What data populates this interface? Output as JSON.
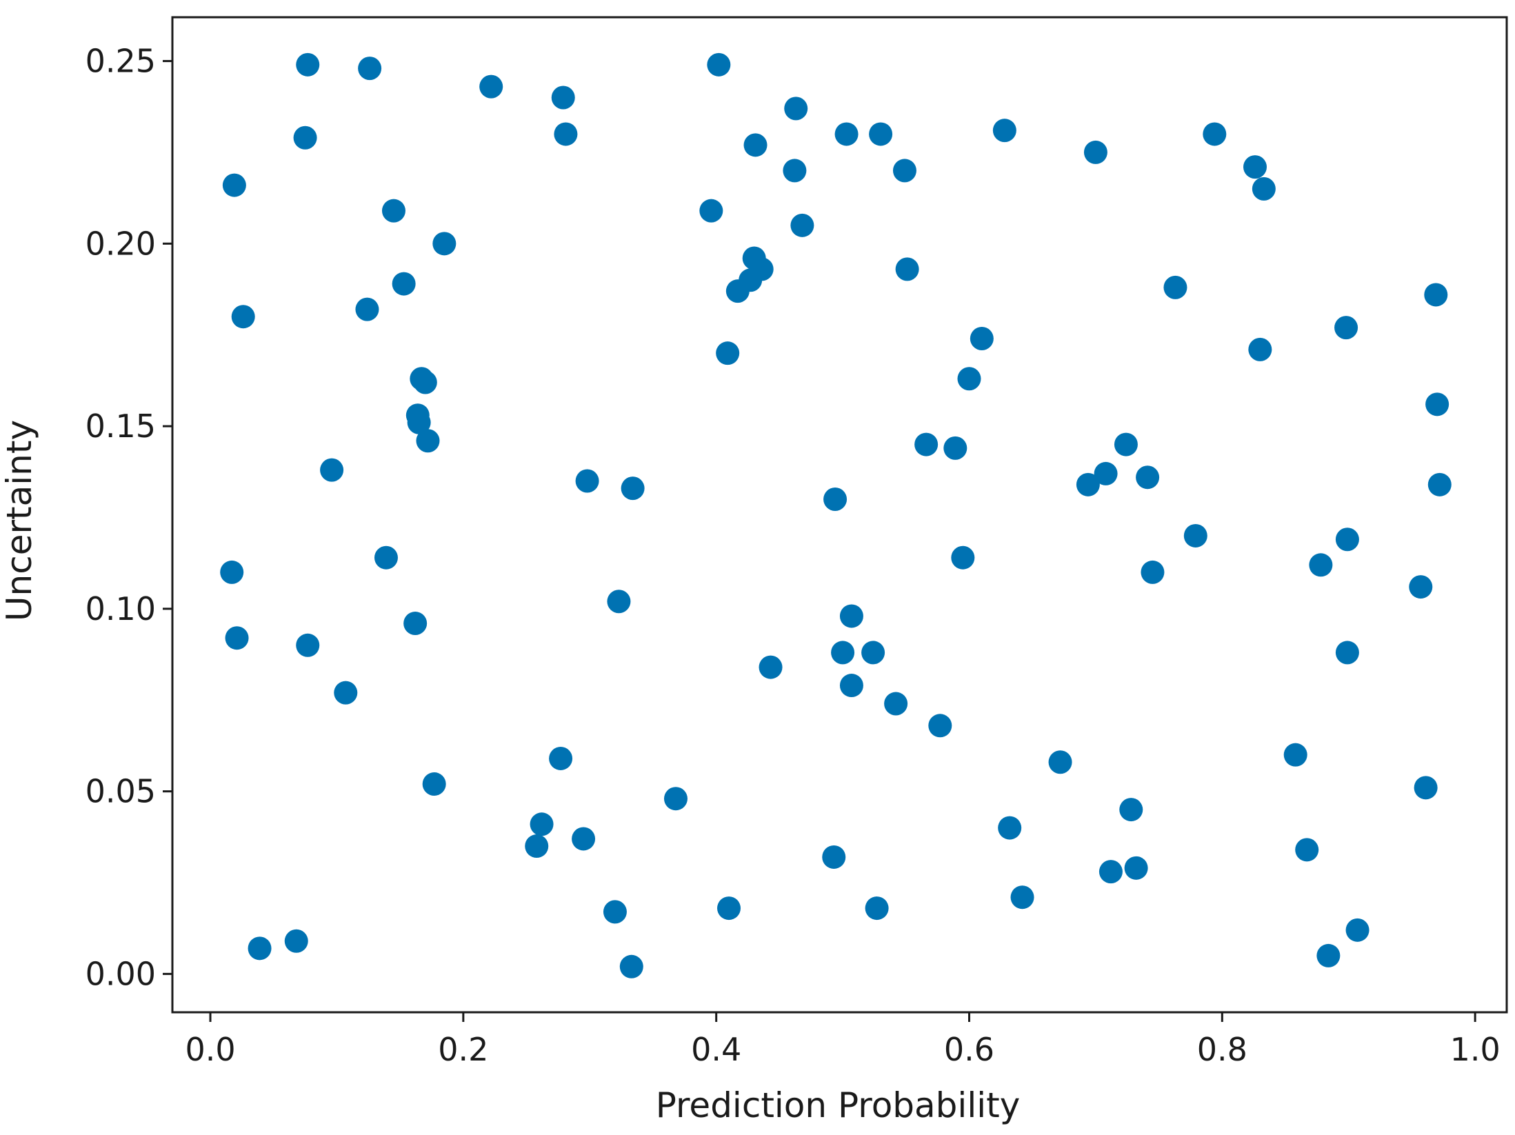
{
  "chart_data": {
    "type": "scatter",
    "title": "",
    "xlabel": "Prediction Probability",
    "ylabel": "Uncertainty",
    "xlim": [
      -0.03,
      1.025
    ],
    "ylim": [
      -0.0105,
      0.262
    ],
    "xticks": [
      0.0,
      0.2,
      0.4,
      0.6,
      0.8,
      1.0
    ],
    "xtick_labels": [
      "0.0",
      "0.2",
      "0.4",
      "0.6",
      "0.8",
      "1.0"
    ],
    "yticks": [
      0.0,
      0.05,
      0.1,
      0.15,
      0.2,
      0.25
    ],
    "ytick_labels": [
      "0.00",
      "0.05",
      "0.10",
      "0.15",
      "0.20",
      "0.25"
    ],
    "grid": false,
    "marker_color": "#0072b2",
    "series": [
      {
        "points": [
          [
            0.077,
            0.249
          ],
          [
            0.126,
            0.248
          ],
          [
            0.222,
            0.243
          ],
          [
            0.279,
            0.24
          ],
          [
            0.402,
            0.249
          ],
          [
            0.075,
            0.229
          ],
          [
            0.281,
            0.23
          ],
          [
            0.463,
            0.237
          ],
          [
            0.503,
            0.23
          ],
          [
            0.53,
            0.23
          ],
          [
            0.628,
            0.231
          ],
          [
            0.794,
            0.23
          ],
          [
            0.431,
            0.227
          ],
          [
            0.462,
            0.22
          ],
          [
            0.549,
            0.22
          ],
          [
            0.7,
            0.225
          ],
          [
            0.826,
            0.221
          ],
          [
            0.833,
            0.215
          ],
          [
            0.019,
            0.216
          ],
          [
            0.145,
            0.209
          ],
          [
            0.396,
            0.209
          ],
          [
            0.468,
            0.205
          ],
          [
            0.185,
            0.2
          ],
          [
            0.43,
            0.196
          ],
          [
            0.436,
            0.193
          ],
          [
            0.427,
            0.19
          ],
          [
            0.417,
            0.187
          ],
          [
            0.551,
            0.193
          ],
          [
            0.153,
            0.189
          ],
          [
            0.763,
            0.188
          ],
          [
            0.969,
            0.186
          ],
          [
            0.026,
            0.18
          ],
          [
            0.124,
            0.182
          ],
          [
            0.898,
            0.177
          ],
          [
            0.409,
            0.17
          ],
          [
            0.61,
            0.174
          ],
          [
            0.83,
            0.171
          ],
          [
            0.167,
            0.163
          ],
          [
            0.17,
            0.162
          ],
          [
            0.6,
            0.163
          ],
          [
            0.164,
            0.153
          ],
          [
            0.165,
            0.151
          ],
          [
            0.172,
            0.146
          ],
          [
            0.97,
            0.156
          ],
          [
            0.566,
            0.145
          ],
          [
            0.589,
            0.144
          ],
          [
            0.724,
            0.145
          ],
          [
            0.096,
            0.138
          ],
          [
            0.298,
            0.135
          ],
          [
            0.334,
            0.133
          ],
          [
            0.694,
            0.134
          ],
          [
            0.708,
            0.137
          ],
          [
            0.741,
            0.136
          ],
          [
            0.972,
            0.134
          ],
          [
            0.494,
            0.13
          ],
          [
            0.779,
            0.12
          ],
          [
            0.899,
            0.119
          ],
          [
            0.139,
            0.114
          ],
          [
            0.595,
            0.114
          ],
          [
            0.878,
            0.112
          ],
          [
            0.017,
            0.11
          ],
          [
            0.745,
            0.11
          ],
          [
            0.957,
            0.106
          ],
          [
            0.323,
            0.102
          ],
          [
            0.507,
            0.098
          ],
          [
            0.162,
            0.096
          ],
          [
            0.021,
            0.092
          ],
          [
            0.077,
            0.09
          ],
          [
            0.5,
            0.088
          ],
          [
            0.524,
            0.088
          ],
          [
            0.899,
            0.088
          ],
          [
            0.443,
            0.084
          ],
          [
            0.107,
            0.077
          ],
          [
            0.507,
            0.079
          ],
          [
            0.542,
            0.074
          ],
          [
            0.577,
            0.068
          ],
          [
            0.277,
            0.059
          ],
          [
            0.672,
            0.058
          ],
          [
            0.858,
            0.06
          ],
          [
            0.177,
            0.052
          ],
          [
            0.961,
            0.051
          ],
          [
            0.368,
            0.048
          ],
          [
            0.262,
            0.041
          ],
          [
            0.632,
            0.04
          ],
          [
            0.728,
            0.045
          ],
          [
            0.258,
            0.035
          ],
          [
            0.295,
            0.037
          ],
          [
            0.867,
            0.034
          ],
          [
            0.493,
            0.032
          ],
          [
            0.712,
            0.028
          ],
          [
            0.732,
            0.029
          ],
          [
            0.32,
            0.017
          ],
          [
            0.41,
            0.018
          ],
          [
            0.527,
            0.018
          ],
          [
            0.642,
            0.021
          ],
          [
            0.907,
            0.012
          ],
          [
            0.039,
            0.007
          ],
          [
            0.068,
            0.009
          ],
          [
            0.333,
            0.002
          ],
          [
            0.884,
            0.005
          ]
        ]
      }
    ]
  }
}
